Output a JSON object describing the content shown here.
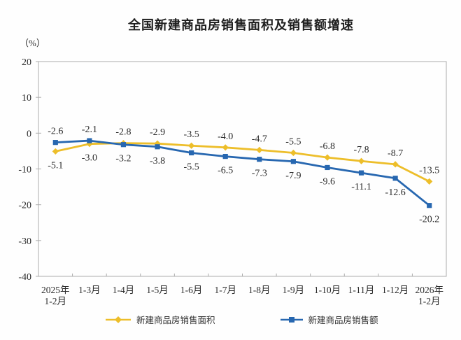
{
  "chart_data": {
    "type": "line",
    "title": "全国新建商品房销售面积及销售额增速",
    "unit_label": "（%）",
    "categories": [
      "2025年\n1-2月",
      "1-3月",
      "1-4月",
      "1-5月",
      "1-6月",
      "1-7月",
      "1-8月",
      "1-9月",
      "1-10月",
      "1-11月",
      "1-12月",
      "2026年\n1-2月"
    ],
    "series": [
      {
        "key": "sales-area",
        "name": "新建商品房销售面积",
        "color": "#EDBE2A",
        "marker": "diamond",
        "values": [
          -5.1,
          -3.0,
          -2.8,
          -2.9,
          -3.5,
          -4.0,
          -4.7,
          -5.5,
          -6.8,
          -7.8,
          -8.7,
          -13.5
        ]
      },
      {
        "key": "sales-amount",
        "name": "新建商品房销售额",
        "color": "#2767B0",
        "marker": "square",
        "values": [
          -2.6,
          -2.1,
          -3.2,
          -3.8,
          -5.5,
          -6.5,
          -7.3,
          -7.9,
          -9.6,
          -11.1,
          -12.6,
          -20.2
        ]
      }
    ],
    "ylim": [
      -40,
      20
    ],
    "y_ticks": [
      20,
      10,
      0,
      -10,
      -20,
      -30,
      -40
    ],
    "grid": false,
    "legend_position": "bottom",
    "axis_color": "#acacac",
    "text_color": "#2b2b2b"
  }
}
